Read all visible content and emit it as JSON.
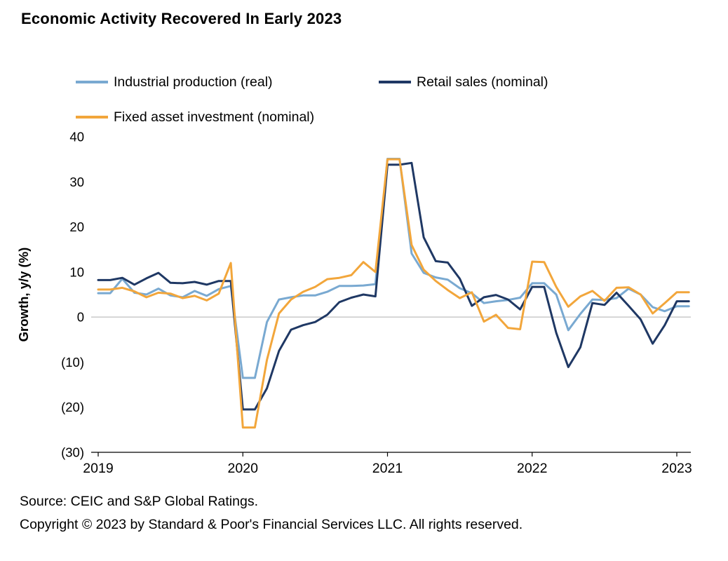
{
  "title": "Economic Activity Recovered In Early 2023",
  "source_line1": "Source: CEIC and S&P Global Ratings.",
  "source_line2": "Copyright © 2023 by Standard & Poor's Financial Services LLC. All rights reserved.",
  "chart_data": {
    "type": "line",
    "title": "Economic Activity Recovered In Early 2023",
    "xlabel": "",
    "ylabel": "Growth, y/y (%)",
    "ylim": [
      -30,
      40
    ],
    "grid": "zero-line-only",
    "legend_position": "top",
    "colors": {
      "industrial_production": "#79A9D1",
      "retail_sales": "#1F3864",
      "fixed_asset_investment": "#F2A63B",
      "zero_line": "#BFBFBF",
      "axis": "#000000"
    },
    "yticks": [
      {
        "value": 40,
        "label": "40"
      },
      {
        "value": 30,
        "label": "30"
      },
      {
        "value": 20,
        "label": "20"
      },
      {
        "value": 10,
        "label": "10"
      },
      {
        "value": 0,
        "label": "0"
      },
      {
        "value": -10,
        "label": "(10)"
      },
      {
        "value": -20,
        "label": "(20)"
      },
      {
        "value": -30,
        "label": "(30)"
      }
    ],
    "xticks": [
      {
        "index": 0,
        "label": "2019"
      },
      {
        "index": 12,
        "label": "2020"
      },
      {
        "index": 24,
        "label": "2021"
      },
      {
        "index": 36,
        "label": "2022"
      },
      {
        "index": 48,
        "label": "2023"
      }
    ],
    "x": [
      "2019-01",
      "2019-02",
      "2019-03",
      "2019-04",
      "2019-05",
      "2019-06",
      "2019-07",
      "2019-08",
      "2019-09",
      "2019-10",
      "2019-11",
      "2019-12",
      "2020-01",
      "2020-02",
      "2020-03",
      "2020-04",
      "2020-05",
      "2020-06",
      "2020-07",
      "2020-08",
      "2020-09",
      "2020-10",
      "2020-11",
      "2020-12",
      "2021-01",
      "2021-02",
      "2021-03",
      "2021-04",
      "2021-05",
      "2021-06",
      "2021-07",
      "2021-08",
      "2021-09",
      "2021-10",
      "2021-11",
      "2021-12",
      "2022-01",
      "2022-02",
      "2022-03",
      "2022-04",
      "2022-05",
      "2022-06",
      "2022-07",
      "2022-08",
      "2022-09",
      "2022-10",
      "2022-11",
      "2022-12",
      "2023-01",
      "2023-02"
    ],
    "series": [
      {
        "name": "Industrial production (real)",
        "color": "#79A9D1",
        "values": [
          5.3,
          5.3,
          8.5,
          5.4,
          5.0,
          6.3,
          4.8,
          4.4,
          5.8,
          4.7,
          6.2,
          6.9,
          -13.5,
          -13.5,
          -1.1,
          3.9,
          4.4,
          4.8,
          4.8,
          5.6,
          6.9,
          6.9,
          7.0,
          7.3,
          35.1,
          35.1,
          14.1,
          9.8,
          8.8,
          8.3,
          6.4,
          5.3,
          3.1,
          3.5,
          3.8,
          4.3,
          7.5,
          7.5,
          5.0,
          -2.9,
          0.7,
          3.9,
          3.8,
          4.2,
          6.3,
          5.0,
          2.2,
          1.3,
          2.4,
          2.4
        ]
      },
      {
        "name": "Retail sales (nominal)",
        "color": "#1F3864",
        "values": [
          8.2,
          8.2,
          8.7,
          7.2,
          8.6,
          9.8,
          7.6,
          7.5,
          7.8,
          7.2,
          8.0,
          8.0,
          -20.5,
          -20.5,
          -15.8,
          -7.5,
          -2.8,
          -1.8,
          -1.1,
          0.5,
          3.3,
          4.3,
          5.0,
          4.6,
          33.8,
          33.8,
          34.2,
          17.7,
          12.4,
          12.1,
          8.5,
          2.5,
          4.4,
          4.9,
          3.9,
          1.7,
          6.7,
          6.7,
          -3.5,
          -11.1,
          -6.7,
          3.1,
          2.7,
          5.4,
          2.5,
          -0.5,
          -5.9,
          -1.8,
          3.5,
          3.5
        ]
      },
      {
        "name": "Fixed asset investment (nominal)",
        "color": "#F2A63B",
        "values": [
          6.1,
          6.1,
          6.5,
          5.7,
          4.4,
          5.4,
          5.2,
          4.2,
          4.7,
          3.7,
          5.2,
          12.0,
          -24.5,
          -24.5,
          -9.5,
          0.8,
          3.9,
          5.6,
          6.7,
          8.4,
          8.7,
          9.3,
          12.2,
          10.0,
          35.0,
          35.0,
          16.0,
          10.5,
          8.0,
          6.0,
          4.2,
          5.5,
          -1.0,
          0.5,
          -2.4,
          -2.7,
          12.3,
          12.2,
          6.7,
          2.3,
          4.6,
          5.8,
          3.6,
          6.5,
          6.6,
          5.0,
          0.8,
          3.1,
          5.5,
          5.5
        ]
      }
    ]
  }
}
